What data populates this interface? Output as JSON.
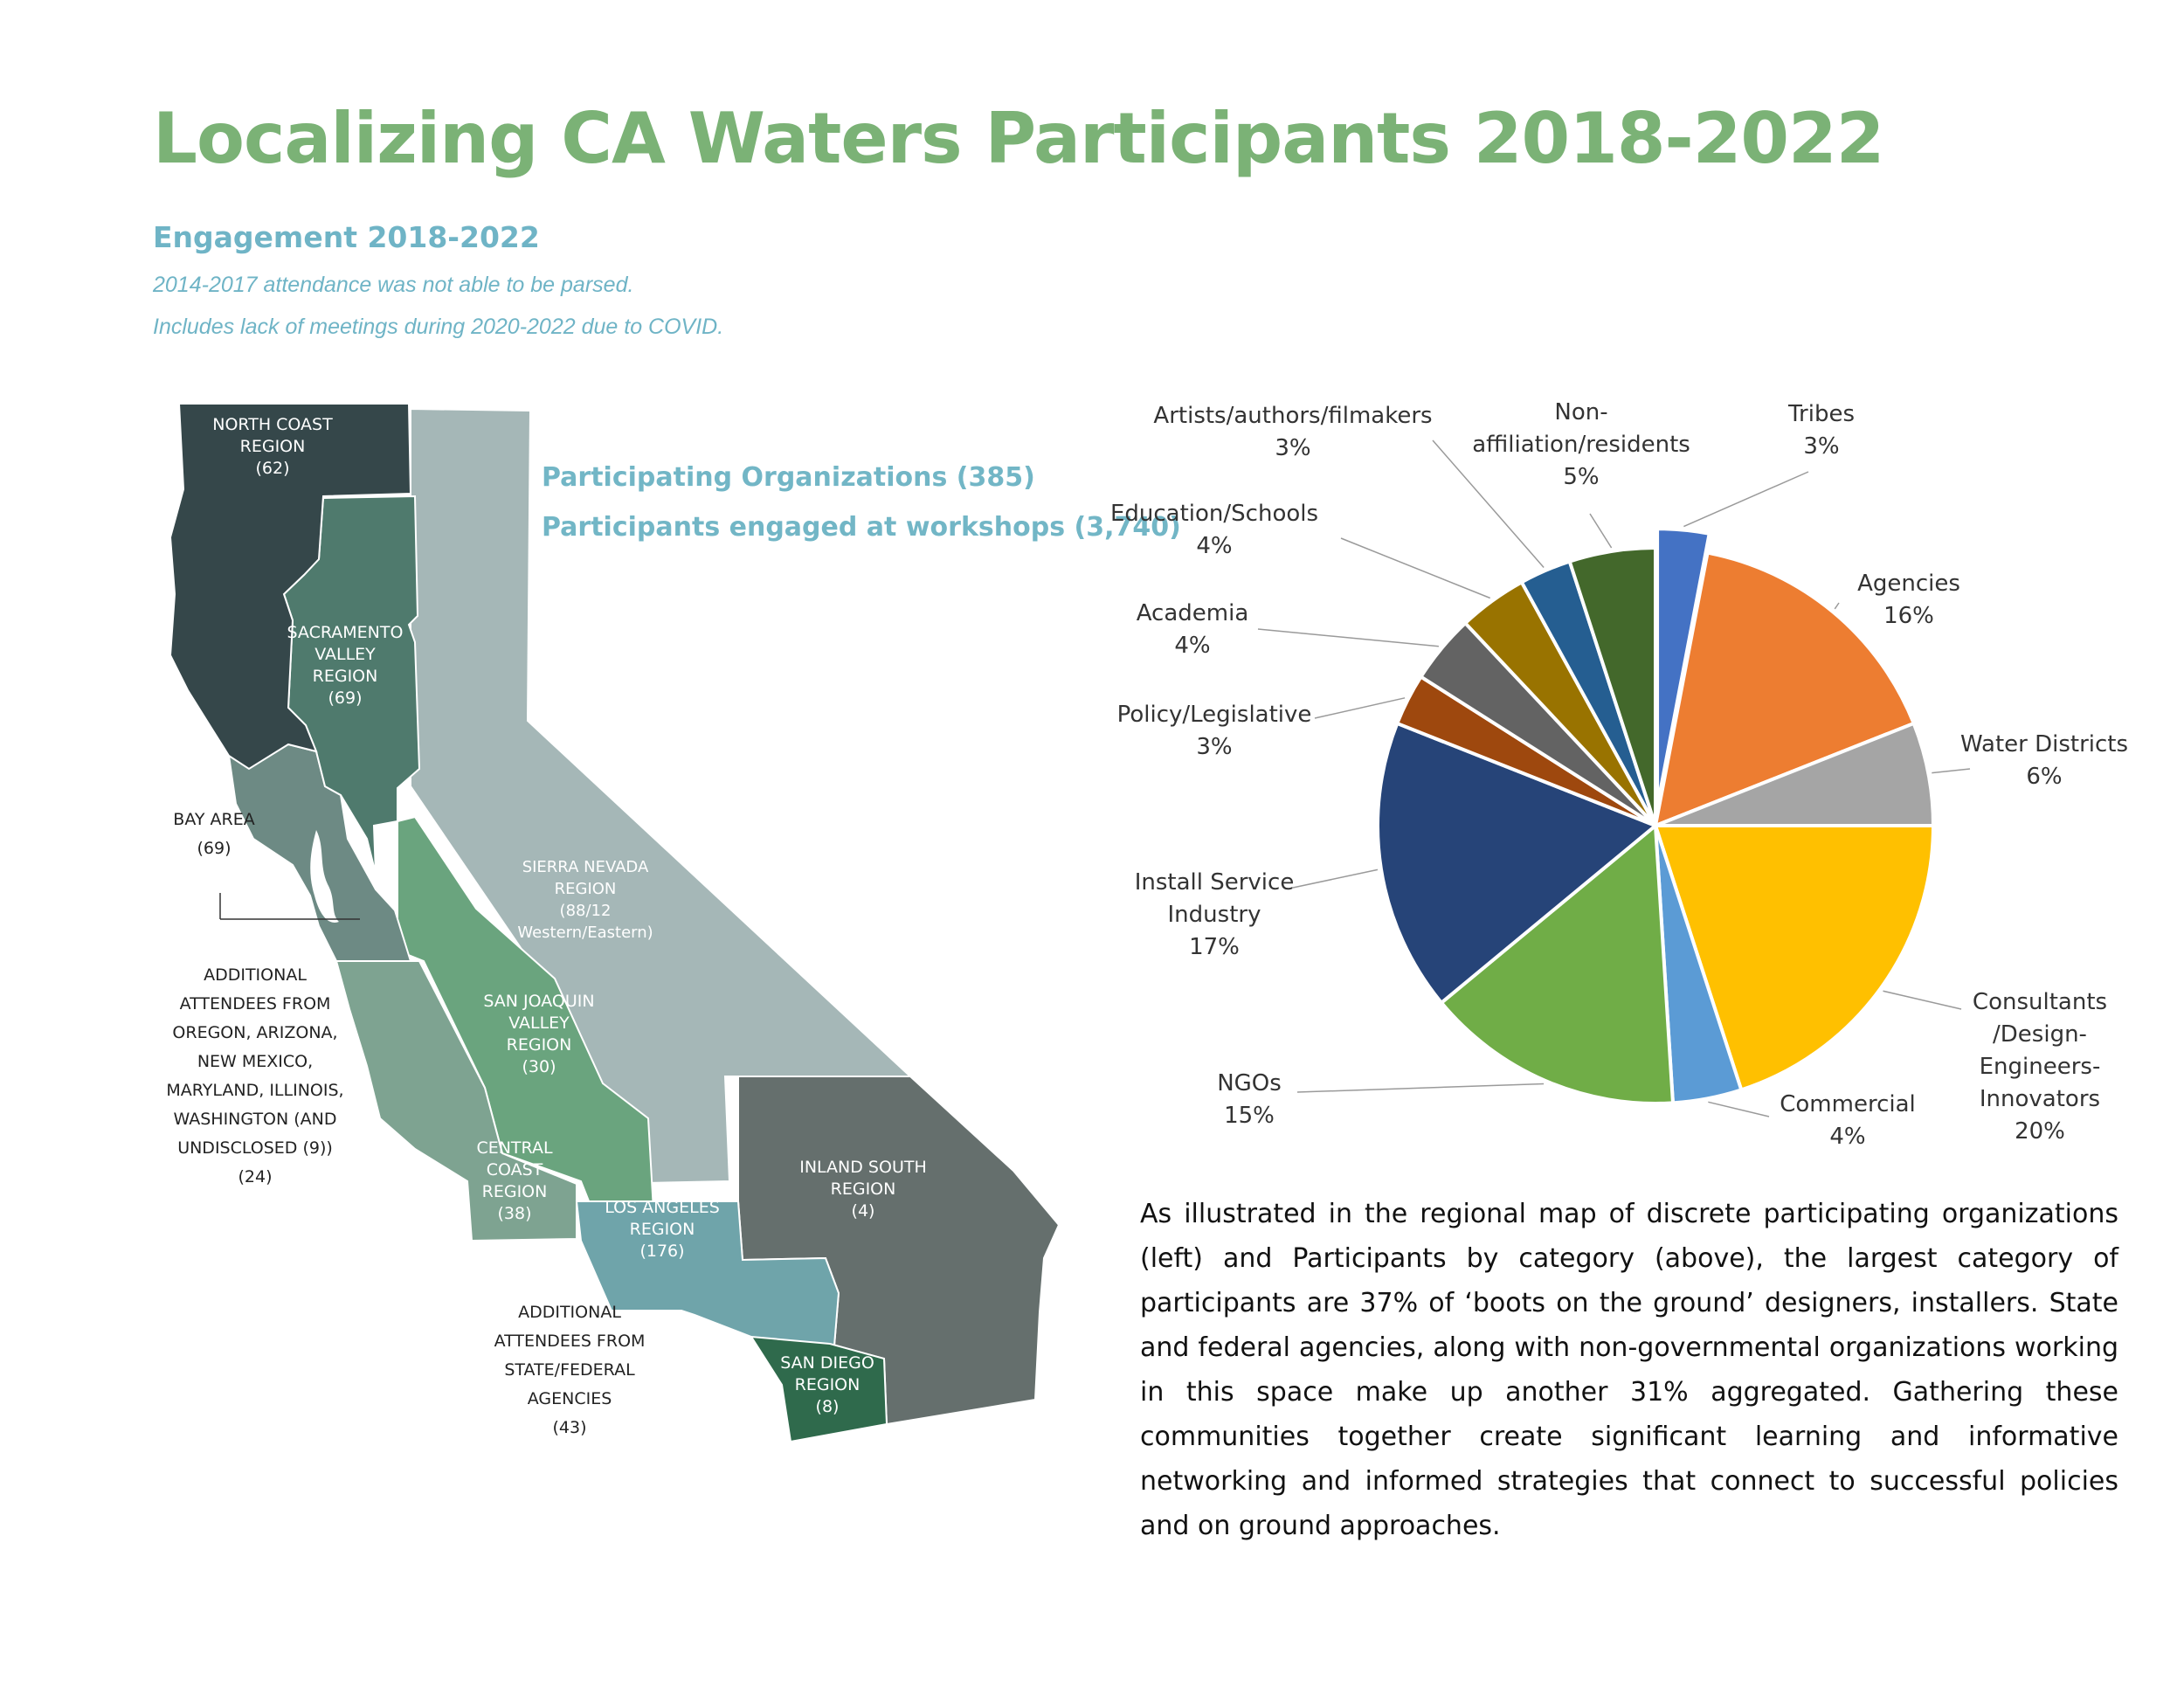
{
  "header": {
    "title": "Localizing CA Waters Participants 2018-2022",
    "subtitle": "Engagement 2018-2022",
    "note1": "2014-2017 attendance was not able to be parsed.",
    "note2": "Includes lack of meetings during 2020-2022 due to COVID."
  },
  "map": {
    "stats": {
      "organizations": "Participating Organizations (385)",
      "participants": "Participants engaged at workshops (3,740)"
    },
    "regions": {
      "north_coast": {
        "lines": [
          "NORTH COAST",
          "REGION",
          "(62)"
        ],
        "color": "#35474a"
      },
      "sacramento": {
        "lines": [
          "SACRAMENTO",
          "VALLEY",
          "REGION",
          "(69)"
        ],
        "color": "#4f7a6d"
      },
      "sierra": {
        "lines": [
          "SIERRA NEVADA",
          "REGION",
          "(88/12",
          "Western/Eastern)"
        ],
        "color": "#a5b7b7"
      },
      "bay_area": {
        "color": "#6d8a84"
      },
      "san_joaquin": {
        "lines": [
          "SAN JOAQUIN",
          "VALLEY",
          "REGION",
          "(30)"
        ],
        "color": "#6aa47e"
      },
      "central_coast": {
        "lines": [
          "CENTRAL",
          "COAST",
          "REGION",
          "(38)"
        ],
        "color": "#7ea391"
      },
      "los_angeles": {
        "lines": [
          "LOS ANGELES",
          "REGION",
          "(176)"
        ],
        "color": "#6fa4aa"
      },
      "inland_south": {
        "lines": [
          "INLAND SOUTH",
          "REGION",
          "(4)"
        ],
        "color": "#656f6d"
      },
      "san_diego": {
        "lines": [
          "SAN DIEGO",
          "REGION",
          "(8)"
        ],
        "color": "#2f6a4c"
      }
    },
    "bay_area_label": [
      "BAY AREA",
      "(69)"
    ],
    "additional_states": [
      "ADDITIONAL",
      "ATTENDEES FROM",
      "OREGON, ARIZONA,",
      "NEW MEXICO,",
      "MARYLAND, ILLINOIS,",
      "WASHINGTON (AND",
      "UNDISCLOSED (9))",
      "(24)"
    ],
    "additional_agencies": [
      "ADDITIONAL",
      "ATTENDEES FROM",
      "STATE/FEDERAL",
      "AGENCIES",
      "(43)"
    ]
  },
  "chart_data": {
    "type": "pie",
    "title": "",
    "start": "12 o'clock, clockwise",
    "slices": [
      {
        "label": "Tribes",
        "value": 3,
        "pct": "3%",
        "color": "#4472c4",
        "exploded": true
      },
      {
        "label": "Agencies",
        "value": 16,
        "pct": "16%",
        "color": "#ed7d31"
      },
      {
        "label": "Water Districts",
        "value": 6,
        "pct": "6%",
        "color": "#a5a5a5"
      },
      {
        "label": "Consultants /Design- Engineers- Innovators",
        "value": 20,
        "pct": "20%",
        "color": "#ffc000"
      },
      {
        "label": "Commercial",
        "value": 4,
        "pct": "4%",
        "color": "#5b9bd5"
      },
      {
        "label": "NGOs",
        "value": 15,
        "pct": "15%",
        "color": "#70ad47"
      },
      {
        "label": "Install Service Industry",
        "value": 17,
        "pct": "17%",
        "color": "#264478"
      },
      {
        "label": "Policy/Legislative",
        "value": 3,
        "pct": "3%",
        "color": "#9e480e"
      },
      {
        "label": "Academia",
        "value": 4,
        "pct": "4%",
        "color": "#636363"
      },
      {
        "label": "Education/Schools",
        "value": 4,
        "pct": "4%",
        "color": "#997300"
      },
      {
        "label": "Artists/authors/filmakers",
        "value": 3,
        "pct": "3%",
        "color": "#255e91"
      },
      {
        "label": "Non-affiliation/residents",
        "value": 5,
        "pct": "5%",
        "color": "#43682b"
      }
    ],
    "display_labels": [
      [
        "Tribes",
        "3%"
      ],
      [
        "Agencies",
        "16%"
      ],
      [
        "Water Districts",
        "6%"
      ],
      [
        "Consultants",
        "/Design-",
        "Engineers-",
        "Innovators",
        "20%"
      ],
      [
        "Commercial",
        "4%"
      ],
      [
        "NGOs",
        "15%"
      ],
      [
        "Install Service",
        "Industry",
        "17%"
      ],
      [
        "Policy/Legislative",
        "3%"
      ],
      [
        "Academia",
        "4%"
      ],
      [
        "Education/Schools",
        "4%"
      ],
      [
        "Artists/authors/filmakers",
        "3%"
      ],
      [
        "Non-",
        "affiliation/residents",
        "5%"
      ]
    ]
  },
  "paragraph": "As illustrated in the regional map of discrete participating organizations (left) and Participants by category (above), the largest category of participants are 37% of ‘boots on the ground’ designers, installers.  State and federal agencies, along with non-governmental organizations working in this space make up another 31% aggregated. Gathering these  communities together create significant learning and  informative networking and informed strategies that connect to successful policies and on ground approaches."
}
